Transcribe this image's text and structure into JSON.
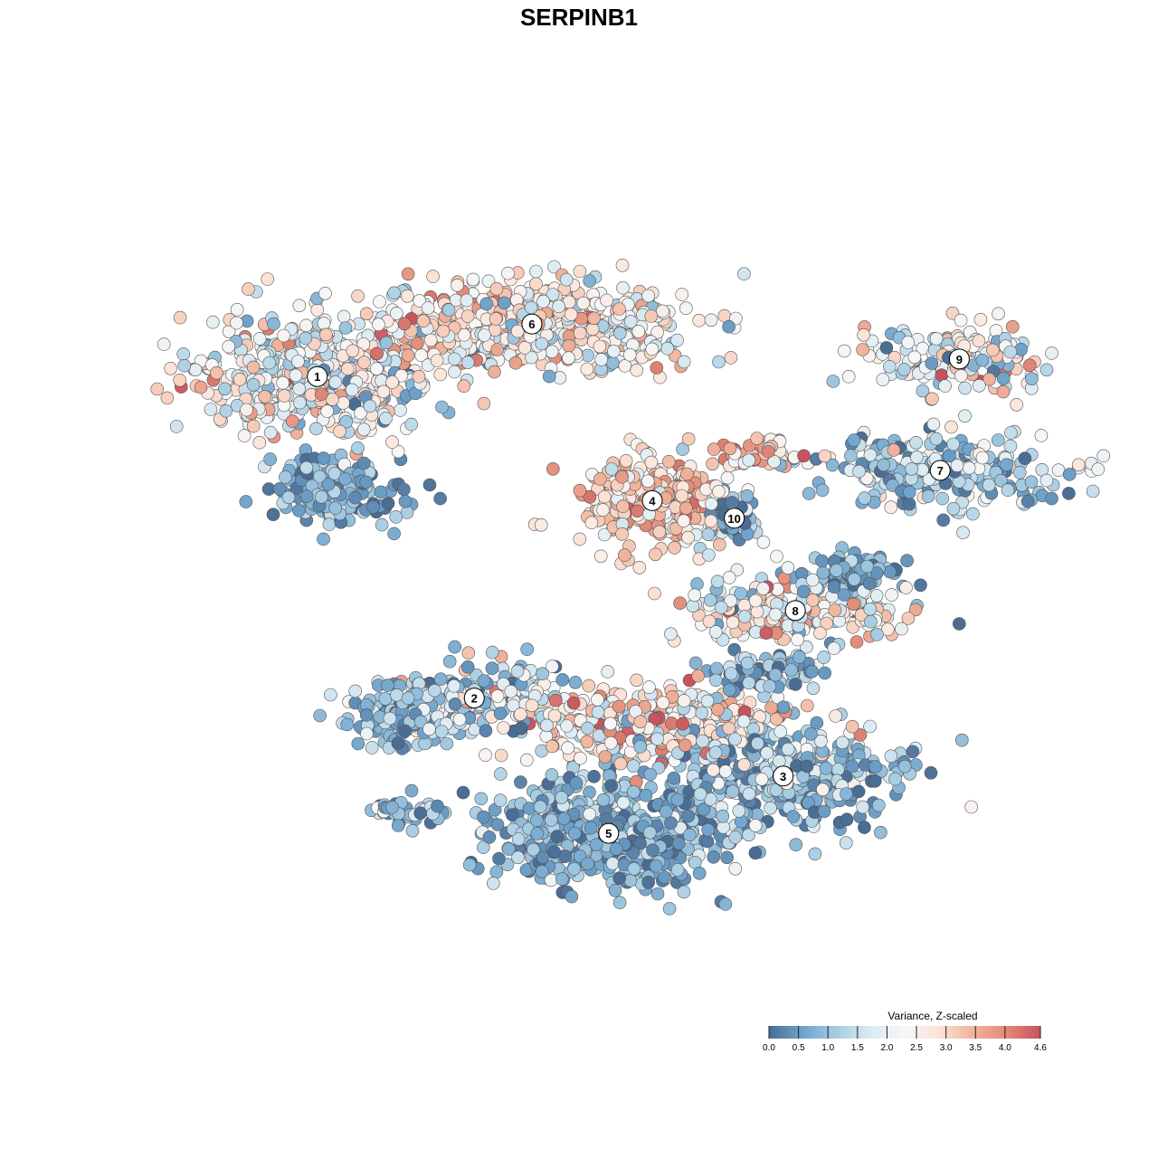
{
  "chart_data": {
    "type": "scatter",
    "title": "SERPINB1",
    "xlabel": "",
    "ylabel": "",
    "grid": false,
    "color_scale": {
      "title": "Variance, Z-scaled",
      "min": 0.0,
      "max": 4.6,
      "ticks": [
        "0.0",
        "0.5",
        "1.0",
        "1.5",
        "2.0",
        "2.5",
        "3.0",
        "3.5",
        "4.0",
        "4.6"
      ],
      "tick_values": [
        0.0,
        0.5,
        1.0,
        1.5,
        2.0,
        2.5,
        3.0,
        3.5,
        4.0,
        4.6
      ],
      "colors": [
        "#4a6d94",
        "#6fa3cc",
        "#a7cde3",
        "#dbeaf2",
        "#f7f7f7",
        "#fbe3d6",
        "#f1b49c",
        "#e28a78",
        "#c8535c"
      ],
      "placement": "bottom-right"
    },
    "clusters": [
      {
        "label": "1",
        "x": -15.0,
        "y": 12.3,
        "spread_x": 6.5,
        "spread_y": 3.8,
        "mean": 2.2,
        "sd": 0.9,
        "n": 500
      },
      {
        "label": "2",
        "x": -6.0,
        "y": -7.9,
        "spread_x": 4.5,
        "spread_y": 2.2,
        "mean": 1.4,
        "sd": 1.0,
        "n": 220
      },
      {
        "label": "3",
        "x": 11.7,
        "y": -12.8,
        "spread_x": 6.5,
        "spread_y": 3.2,
        "mean": 1.1,
        "sd": 0.7,
        "n": 400
      },
      {
        "label": "4",
        "x": 4.2,
        "y": 4.5,
        "spread_x": 4.2,
        "spread_y": 3.0,
        "mean": 2.9,
        "sd": 0.8,
        "n": 330
      },
      {
        "label": "5",
        "x": 1.7,
        "y": -16.4,
        "spread_x": 6.8,
        "spread_y": 3.4,
        "mean": 0.8,
        "sd": 0.5,
        "n": 600
      },
      {
        "label": "6",
        "x": -2.7,
        "y": 15.6,
        "spread_x": 9.5,
        "spread_y": 2.8,
        "mean": 2.5,
        "sd": 0.8,
        "n": 520
      },
      {
        "label": "7",
        "x": 20.7,
        "y": 6.4,
        "spread_x": 6.8,
        "spread_y": 2.3,
        "mean": 1.3,
        "sd": 0.8,
        "n": 250
      },
      {
        "label": "8",
        "x": 12.4,
        "y": -2.4,
        "spread_x": 6.0,
        "spread_y": 2.2,
        "mean": 2.3,
        "sd": 1.0,
        "n": 230
      },
      {
        "label": "9",
        "x": 21.8,
        "y": 13.4,
        "spread_x": 5.5,
        "spread_y": 2.0,
        "mean": 2.0,
        "sd": 1.1,
        "n": 150
      },
      {
        "label": "10",
        "x": 8.9,
        "y": 3.4,
        "spread_x": 1.5,
        "spread_y": 1.6,
        "mean": 0.7,
        "sd": 0.6,
        "n": 60
      }
    ],
    "extra_groups": [
      {
        "x": 4.5,
        "y": -9.6,
        "spread_x": 7.5,
        "spread_y": 2.4,
        "mean": 2.6,
        "sd": 1.0,
        "n": 380
      },
      {
        "x": -10.3,
        "y": -9.2,
        "spread_x": 3.6,
        "spread_y": 1.9,
        "mean": 0.9,
        "sd": 0.6,
        "n": 140
      },
      {
        "x": -14.3,
        "y": 5.3,
        "spread_x": 3.6,
        "spread_y": 2.2,
        "mean": 0.6,
        "sd": 0.5,
        "n": 180
      },
      {
        "x": -9.8,
        "y": -14.9,
        "spread_x": 2.6,
        "spread_y": 0.8,
        "mean": 0.9,
        "sd": 0.6,
        "n": 40
      },
      {
        "x": 10.7,
        "y": 7.4,
        "spread_x": 3.2,
        "spread_y": 1.0,
        "mean": 3.0,
        "sd": 0.9,
        "n": 60
      },
      {
        "x": 16.0,
        "y": 0.1,
        "spread_x": 2.4,
        "spread_y": 1.2,
        "mean": 0.6,
        "sd": 0.5,
        "n": 70
      },
      {
        "x": 10.5,
        "y": -6.4,
        "spread_x": 3.0,
        "spread_y": 1.4,
        "mean": 0.8,
        "sd": 0.6,
        "n": 90
      }
    ],
    "xlim": [
      -28,
      28
    ],
    "ylim": [
      -26,
      28
    ]
  }
}
